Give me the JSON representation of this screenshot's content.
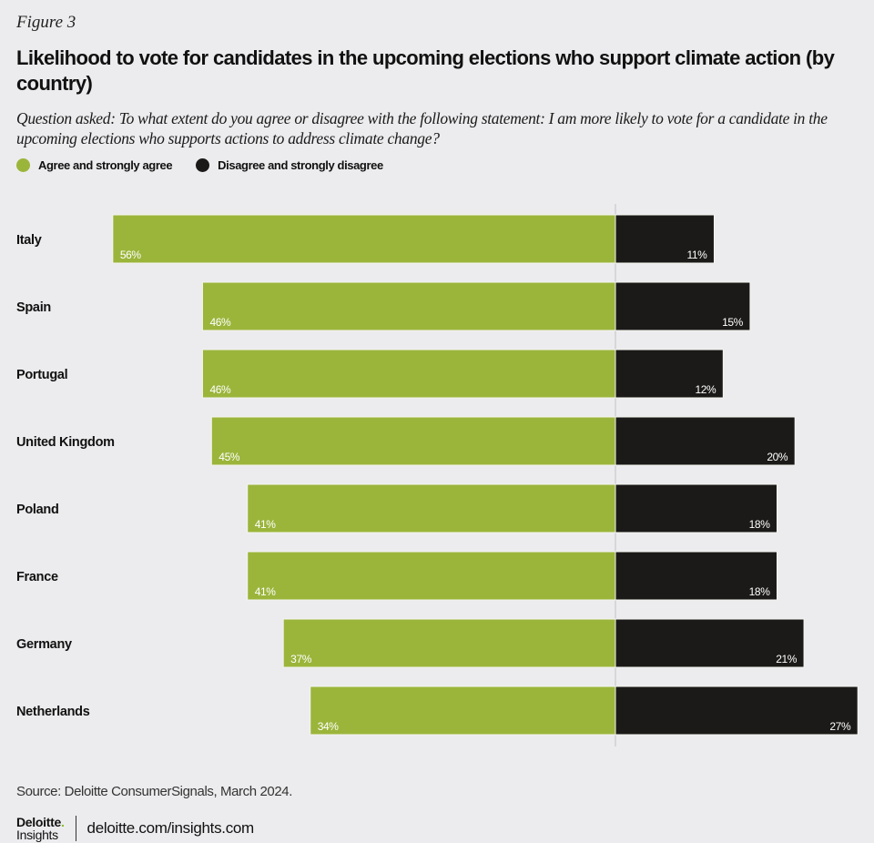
{
  "figure_label": "Figure 3",
  "title": "Likelihood to vote for candidates in the upcoming elections who support climate action (by country)",
  "question": "Question asked: To what extent do you agree or disagree with the following statement: I am more likely to vote for a candidate in the upcoming elections who supports actions to address climate change?",
  "colors": {
    "agree": "#9bb53b",
    "disagree": "#1b1a18",
    "background": "#ececee",
    "axis": "#d0d0d2"
  },
  "chart_data": {
    "type": "bar",
    "orientation": "horizontal-diverging",
    "title": "Likelihood to vote for candidates in the upcoming elections who support climate action (by country)",
    "xlabel": "",
    "ylabel": "",
    "unit": "%",
    "categories": [
      "Italy",
      "Spain",
      "Portugal",
      "United Kingdom",
      "Poland",
      "France",
      "Germany",
      "Netherlands"
    ],
    "series": [
      {
        "name": "Agree and strongly agree",
        "color": "#9bb53b",
        "direction": "left",
        "values": [
          56,
          46,
          46,
          45,
          41,
          41,
          37,
          34
        ],
        "labels": [
          "56%",
          "46%",
          "46%",
          "45%",
          "41%",
          "41%",
          "37%",
          "34%"
        ]
      },
      {
        "name": "Disagree and strongly disagree",
        "color": "#1b1a18",
        "direction": "right",
        "values": [
          11,
          15,
          12,
          20,
          18,
          18,
          21,
          27
        ],
        "labels": [
          "11%",
          "15%",
          "12%",
          "20%",
          "18%",
          "18%",
          "21%",
          "27%"
        ]
      }
    ],
    "legend_position": "top-left",
    "grid": false
  },
  "source": "Source: Deloitte ConsumerSignals, March 2024.",
  "footer": {
    "brand": "Deloitte",
    "brand_dot": ".",
    "sub": "Insights",
    "url": "deloitte.com/insights.com"
  }
}
